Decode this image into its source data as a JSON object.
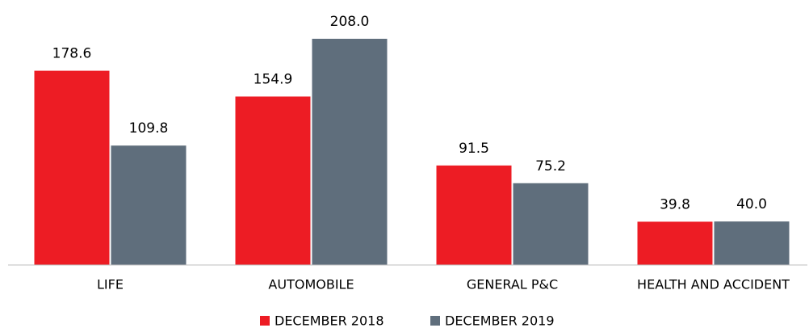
{
  "chart_data": {
    "type": "bar",
    "categories": [
      "LIFE",
      "AUTOMOBILE",
      "GENERAL P&C",
      "HEALTH AND ACCIDENT"
    ],
    "series": [
      {
        "name": "DECEMBER 2018",
        "color": "#ed1c24",
        "values": [
          178.6,
          154.9,
          91.5,
          39.8
        ],
        "value_labels": [
          "178.6",
          "154.9",
          "91.5",
          "39.8"
        ]
      },
      {
        "name": "DECEMBER 2019",
        "color": "#5f6e7c",
        "values": [
          109.8,
          208.0,
          75.2,
          40.0
        ],
        "value_labels": [
          "109.8",
          "208.0",
          "75.2",
          "40.0"
        ]
      }
    ],
    "legend": "bottom"
  }
}
